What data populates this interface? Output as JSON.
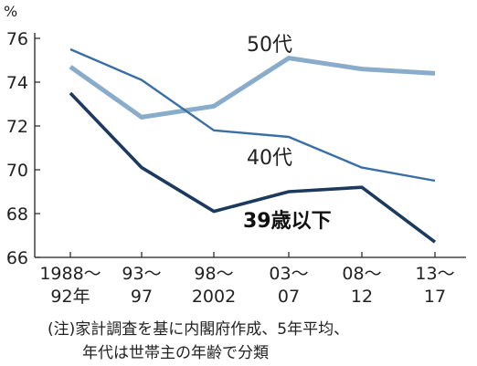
{
  "chart_data": {
    "type": "line",
    "y_unit": "%",
    "ylim": [
      66,
      76
    ],
    "yticks": [
      66,
      68,
      70,
      72,
      74,
      76
    ],
    "x_ticks": [
      {
        "line1": "1988〜",
        "line2": "92年"
      },
      {
        "line1": "93〜",
        "line2": "97"
      },
      {
        "line1": "98〜",
        "line2": "2002"
      },
      {
        "line1": "03〜",
        "line2": "07"
      },
      {
        "line1": "08〜",
        "line2": "12"
      },
      {
        "line1": "13〜",
        "line2": "17"
      }
    ],
    "grid": false,
    "series": [
      {
        "name": "50代",
        "color": "#8aaccb",
        "values": [
          74.7,
          72.4,
          72.9,
          75.1,
          74.6,
          74.4
        ]
      },
      {
        "name": "40代",
        "color": "#3a6fa6",
        "values": [
          75.5,
          74.1,
          71.8,
          71.5,
          70.1,
          69.5
        ]
      },
      {
        "name": "39歳以下",
        "color": "#1c3a5e",
        "values": [
          73.5,
          70.1,
          68.1,
          69.0,
          69.2,
          66.7
        ]
      }
    ]
  },
  "notes": {
    "line1": "(注)家計調査を基に内閣府作成、5年平均、",
    "line2": "年代は世帯主の年齢で分類"
  }
}
